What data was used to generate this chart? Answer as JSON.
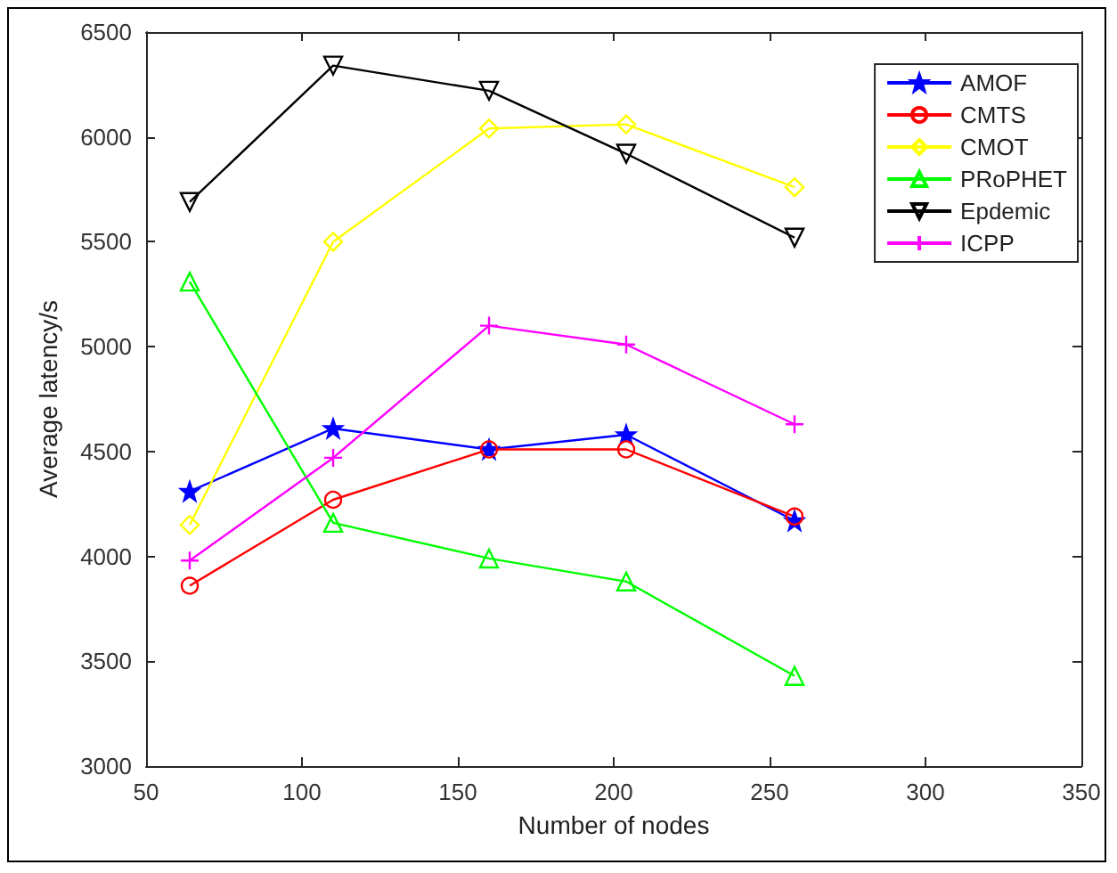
{
  "chart_data": {
    "type": "line",
    "xlabel": "Number of nodes",
    "ylabel": "Average latency/s",
    "x": [
      64,
      110,
      160,
      204,
      258
    ],
    "series": [
      {
        "name": "AMOF",
        "color": "#0000ff",
        "marker": "star",
        "values": [
          4310,
          4610,
          4510,
          4580,
          4170
        ]
      },
      {
        "name": "CMTS",
        "color": "#ff0000",
        "marker": "circle",
        "values": [
          3860,
          4270,
          4510,
          4510,
          4190
        ]
      },
      {
        "name": "CMOT",
        "color": "#ffff00",
        "marker": "diamond",
        "values": [
          4150,
          5500,
          6040,
          6060,
          5760
        ]
      },
      {
        "name": "PRoPHET",
        "color": "#00ff00",
        "marker": "triangle",
        "values": [
          5310,
          4160,
          3990,
          3880,
          3430
        ]
      },
      {
        "name": "Epdemic",
        "color": "#000000",
        "marker": "triangle-down",
        "values": [
          5690,
          6340,
          6220,
          5920,
          5520
        ]
      },
      {
        "name": "ICPP",
        "color": "#ff00ff",
        "marker": "cross",
        "values": [
          3980,
          4470,
          5100,
          5010,
          4630
        ]
      }
    ],
    "xlim": [
      50,
      350
    ],
    "xticks": [
      50,
      100,
      150,
      200,
      250,
      300,
      350
    ],
    "ylim": [
      3000,
      6500
    ],
    "yticks": [
      3000,
      3500,
      4000,
      4500,
      5000,
      5500,
      6000,
      6500
    ],
    "grid": false,
    "legend": "top right",
    "line_style": "solid"
  }
}
